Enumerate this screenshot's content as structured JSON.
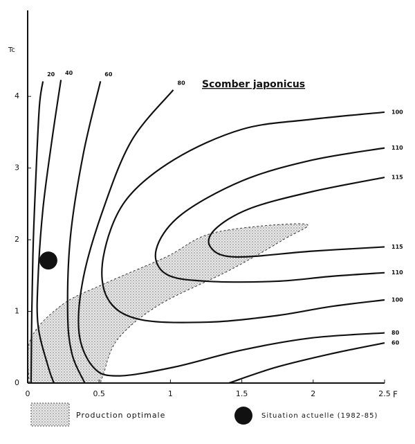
{
  "chart_data": {
    "type": "contour",
    "title": "Scomber japonicus",
    "x_label": "F",
    "y_label": "Tc",
    "xlim": [
      0,
      2.5
    ],
    "ylim": [
      0,
      5.2
    ],
    "xticks": [
      0,
      0.5,
      1,
      1.5,
      2,
      2.5
    ],
    "yticks": [
      0,
      1,
      2,
      3,
      4
    ],
    "color": "#111111",
    "contours": [
      {
        "level": 20,
        "x": [
          0.107,
          0.082,
          0.058,
          0.039,
          0.029,
          0.024
        ],
        "y": [
          4.21,
          3.86,
          2.9,
          1.95,
          0.99,
          0
        ]
      },
      {
        "level": 40,
        "x": [
          0.233,
          0.17,
          0.107,
          0.073,
          0.073,
          0.145,
          0.184
        ],
        "y": [
          4.23,
          3.39,
          2.43,
          1.47,
          0.8,
          0.22,
          0
        ]
      },
      {
        "level": 60,
        "x": [
          0.51,
          0.39,
          0.3,
          0.28,
          0.31,
          0.4
        ],
        "y": [
          4.21,
          3.2,
          2.05,
          0.99,
          0.41,
          0
        ]
      },
      {
        "level": 80,
        "x": [
          1.02,
          0.73,
          0.53,
          0.39,
          0.36,
          0.46,
          0.63,
          1.02,
          1.5,
          1.99,
          2.5
        ],
        "y": [
          4.09,
          3.39,
          2.43,
          1.47,
          0.7,
          0.22,
          0.1,
          0.22,
          0.46,
          0.63,
          0.7
        ]
      },
      {
        "level": 100,
        "x": [
          2.5,
          1.99,
          1.5,
          1.02,
          0.68,
          0.53,
          0.56,
          0.78,
          1.26,
          1.74,
          2.13,
          2.5
        ],
        "y": [
          3.78,
          3.68,
          3.54,
          3.11,
          2.53,
          1.76,
          1.18,
          0.89,
          0.85,
          0.94,
          1.07,
          1.16
        ]
      },
      {
        "level": 110,
        "x": [
          2.5,
          1.99,
          1.5,
          1.07,
          0.9,
          0.97,
          1.26,
          1.74,
          2.13,
          2.5
        ],
        "y": [
          3.28,
          3.11,
          2.82,
          2.34,
          1.86,
          1.52,
          1.42,
          1.42,
          1.49,
          1.54
        ]
      },
      {
        "level": 115,
        "x": [
          2.5,
          1.99,
          1.55,
          1.31,
          1.28,
          1.45,
          1.99,
          2.5
        ],
        "y": [
          2.87,
          2.67,
          2.43,
          2.14,
          1.9,
          1.76,
          1.84,
          1.9
        ]
      },
      {
        "level": 60,
        "x": [
          2.5,
          2.13,
          1.74,
          1.41
        ],
        "y": [
          0.56,
          0.41,
          0.22,
          0
        ]
      }
    ],
    "optimal_region": {
      "name": "Production optimale",
      "x": [
        0.01,
        0.02,
        0.24,
        0.53,
        0.97,
        1.31,
        1.94,
        1.79,
        1.41,
        0.92,
        0.63,
        0.53,
        0.51
      ],
      "y": [
        0,
        0.61,
        1.09,
        1.38,
        1.76,
        2.1,
        2.22,
        2.0,
        1.57,
        1.09,
        0.61,
        0.12,
        0
      ]
    },
    "current_situation": {
      "name": "Situation actuelle (1982-85)",
      "x": 0.145,
      "y": 1.71
    }
  }
}
